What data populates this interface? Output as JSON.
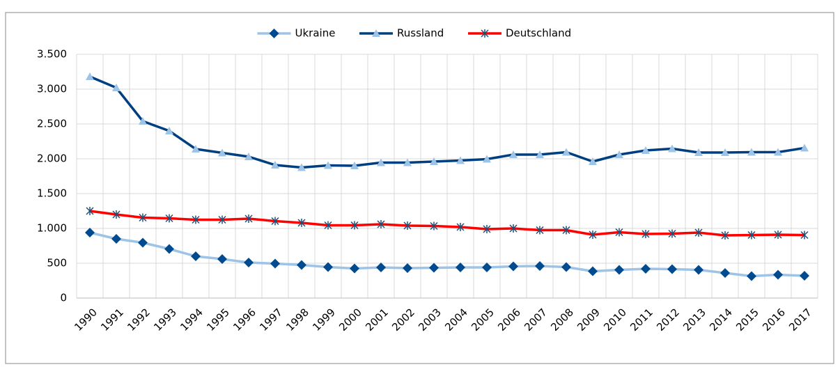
{
  "chart_data": {
    "type": "line",
    "categories": [
      "1990",
      "1991",
      "1992",
      "1993",
      "1994",
      "1995",
      "1996",
      "1997",
      "1998",
      "1999",
      "2000",
      "2001",
      "2002",
      "2003",
      "2004",
      "2005",
      "2006",
      "2007",
      "2008",
      "2009",
      "2010",
      "2011",
      "2012",
      "2013",
      "2014",
      "2015",
      "2016",
      "2017"
    ],
    "series": [
      {
        "name": "Ukraine",
        "color": "#9dc3e6",
        "marker": "diamond",
        "marker_color": "#004a8f",
        "values": [
          940,
          850,
          795,
          705,
          600,
          560,
          510,
          495,
          475,
          445,
          425,
          440,
          430,
          435,
          440,
          440,
          455,
          460,
          445,
          385,
          405,
          420,
          415,
          405,
          360,
          315,
          335,
          320
        ]
      },
      {
        "name": "Russland",
        "color": "#003f7f",
        "marker": "triangle",
        "marker_color": "#9dc3e6",
        "values": [
          3180,
          3020,
          2540,
          2400,
          2140,
          2085,
          2030,
          1910,
          1875,
          1905,
          1900,
          1945,
          1945,
          1960,
          1975,
          1995,
          2060,
          2060,
          2095,
          1960,
          2060,
          2120,
          2145,
          2090,
          2090,
          2095,
          2095,
          2155
        ]
      },
      {
        "name": "Deutschland",
        "color": "#ff0000",
        "marker": "asterisk",
        "marker_color": "#1f4e79",
        "values": [
          1250,
          1200,
          1155,
          1145,
          1125,
          1125,
          1140,
          1105,
          1080,
          1045,
          1045,
          1060,
          1040,
          1035,
          1020,
          990,
          1000,
          975,
          975,
          910,
          945,
          920,
          925,
          940,
          900,
          905,
          910,
          905
        ]
      }
    ],
    "ylim": [
      0,
      3500
    ],
    "yticks": [
      0,
      {
        "value": 500,
        "label": "500"
      },
      {
        "value": 1000,
        "label": "1.000"
      },
      {
        "value": 1500,
        "label": "1.500"
      },
      {
        "value": 2000,
        "label": "2.000"
      },
      {
        "value": 2500,
        "label": "2.500"
      },
      {
        "value": 3000,
        "label": "3.000"
      },
      {
        "value": 3500,
        "label": "3.500"
      }
    ],
    "grid": true,
    "legend": "top"
  }
}
